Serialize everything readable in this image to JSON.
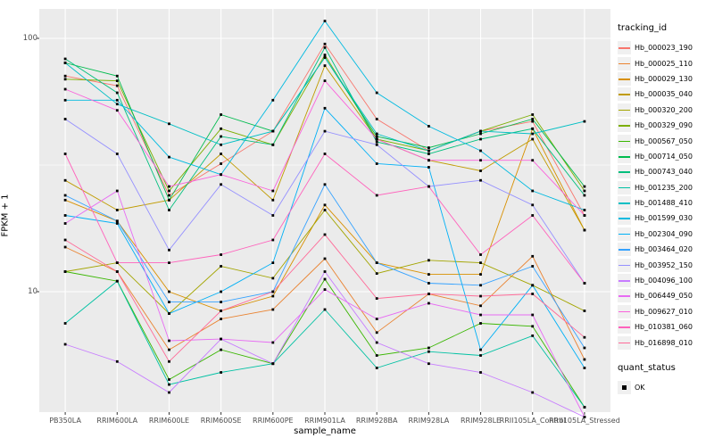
{
  "page_bg": "#FFFFFF",
  "chart_data": {
    "type": "line",
    "title": "",
    "xlabel": "sample_name",
    "ylabel": "FPKM + 1",
    "y_scale": "log10",
    "y_ticks": [
      100,
      10
    ],
    "y_minor_ticks": [
      31.6
    ],
    "ylim_log10": [
      0.5,
      2.12
    ],
    "grid": "on",
    "panel_bg": "#EBEBEB",
    "grid_color": "#FFFFFF",
    "point_color": "#000000",
    "point_shape": "filled-square",
    "legend_position": "right",
    "categories": [
      "PB350LA",
      "RRIM600LA",
      "RRIM600LE",
      "RRIM600SE",
      "RRIM600PE",
      "RRIM901LA",
      "RRIM928BA",
      "RRIM928LA",
      "RRIM928LE",
      "RRII105LA_Control",
      "RRII105LA_Stressed"
    ],
    "series": [
      {
        "name": "Hb_000023_190",
        "color": "#F8766D",
        "values": [
          71,
          65,
          24,
          32,
          43,
          95,
          48,
          36,
          43,
          47,
          20
        ]
      },
      {
        "name": "Hb_000025_110",
        "color": "#EA8331",
        "values": [
          15,
          12,
          5.9,
          7.8,
          8.5,
          13.5,
          6.9,
          9.8,
          8.8,
          13.8,
          5.4
        ]
      },
      {
        "name": "Hb_000029_130",
        "color": "#D89000",
        "values": [
          23,
          19,
          10,
          8.4,
          9.6,
          22,
          13,
          11.7,
          11.7,
          44,
          17.5
        ]
      },
      {
        "name": "Hb_000035_040",
        "color": "#C09B00",
        "values": [
          27.5,
          21,
          23,
          35,
          23,
          78,
          40,
          33,
          30,
          40,
          17.5
        ]
      },
      {
        "name": "Hb_000320_200",
        "color": "#A3A500",
        "values": [
          12,
          13,
          8.2,
          12.6,
          11.3,
          21,
          11.8,
          13.3,
          13,
          10.6,
          8.4
        ]
      },
      {
        "name": "Hb_000329_090",
        "color": "#7CAE00",
        "values": [
          69,
          68,
          25,
          44,
          38,
          86,
          40,
          36,
          43,
          50,
          25
        ]
      },
      {
        "name": "Hb_000567_050",
        "color": "#39B600",
        "values": [
          12,
          11,
          4.5,
          5.9,
          5.2,
          11.2,
          5.6,
          6,
          7.5,
          7.3,
          3.5
        ]
      },
      {
        "name": "Hb_000714_050",
        "color": "#00BB4E",
        "values": [
          80,
          71,
          23,
          50,
          43,
          84,
          41,
          37,
          42,
          48,
          26
        ]
      },
      {
        "name": "Hb_000743_040",
        "color": "#00BF7D",
        "values": [
          83,
          61,
          21,
          41,
          38,
          92,
          39,
          35,
          40,
          44,
          24
        ]
      },
      {
        "name": "Hb_001235_200",
        "color": "#00C1A3",
        "values": [
          7.5,
          11,
          4.3,
          4.8,
          5.2,
          8.5,
          5,
          5.8,
          5.6,
          6.7,
          3.5
        ]
      },
      {
        "name": "Hb_001488_410",
        "color": "#00BFC4",
        "values": [
          80,
          55,
          46,
          38,
          43,
          84,
          42,
          36,
          43,
          42,
          47
        ]
      },
      {
        "name": "Hb_001599_030",
        "color": "#00BAE0",
        "values": [
          57,
          57,
          34,
          29,
          57,
          117,
          61,
          45,
          36,
          25,
          21
        ]
      },
      {
        "name": "Hb_002304_090",
        "color": "#00B0F6",
        "values": [
          20,
          18.6,
          8.2,
          10,
          13,
          53,
          32,
          31,
          5.9,
          10.6,
          5
        ]
      },
      {
        "name": "Hb_003464_020",
        "color": "#35A2FF",
        "values": [
          24,
          19,
          9.1,
          9.1,
          10,
          26.5,
          13,
          10.8,
          10.6,
          12.6,
          6
        ]
      },
      {
        "name": "Hb_003952_150",
        "color": "#9590FF",
        "values": [
          48,
          35,
          14.6,
          26.5,
          20,
          43,
          38,
          26,
          27.5,
          22,
          10.8
        ]
      },
      {
        "name": "Hb_004096_100",
        "color": "#C77CFF",
        "values": [
          6.2,
          5.3,
          4,
          6.5,
          5.2,
          12,
          6.3,
          5.2,
          4.8,
          4,
          3.2
        ]
      },
      {
        "name": "Hb_006449_050",
        "color": "#E76BF3",
        "values": [
          18.6,
          25,
          6.4,
          6.5,
          6.3,
          10.2,
          7.8,
          9,
          8.1,
          8.1,
          3.2
        ]
      },
      {
        "name": "Hb_009627_010",
        "color": "#FA62DB",
        "values": [
          63,
          52,
          26,
          29,
          25,
          68,
          40,
          33,
          33,
          33,
          20
        ]
      },
      {
        "name": "Hb_010381_060",
        "color": "#FF62BC",
        "values": [
          35,
          13,
          13,
          14,
          16,
          35,
          24,
          26,
          14,
          20,
          10.8
        ]
      },
      {
        "name": "Hb_016898_010",
        "color": "#FF6A98",
        "values": [
          16,
          12,
          5.3,
          8.4,
          10,
          16.8,
          9.4,
          9.8,
          9.6,
          9.8,
          6.6
        ]
      }
    ],
    "legend": {
      "tracking_title": "tracking_id",
      "quant_title": "quant_status",
      "quant_label": "OK"
    }
  }
}
